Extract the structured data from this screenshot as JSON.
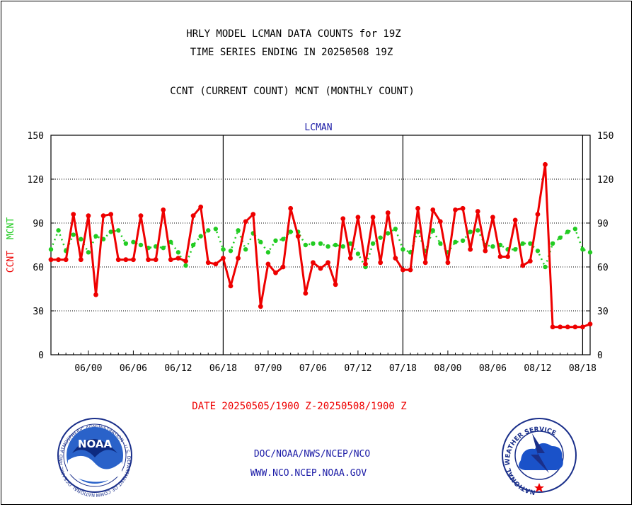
{
  "header": {
    "line1": "HRLY MODEL LCMAN DATA COUNTS for 19Z",
    "line2": "TIME SERIES ENDING IN 20250508 19Z",
    "line3": "CCNT (CURRENT COUNT) MCNT (MONTHLY COUNT)"
  },
  "chart_data": {
    "type": "line",
    "title": "LCMAN",
    "ylabel_ccnt": "CCNT",
    "ylabel_mcnt": "MCNT",
    "xlabel": "DATE 20250505/1900 Z-20250508/1900 Z",
    "ylim": [
      0,
      150
    ],
    "yticks": [
      0,
      30,
      60,
      90,
      120,
      150
    ],
    "x_start_hour": 19,
    "x_count": 73,
    "xtick_labels": [
      "06/00",
      "06/06",
      "06/12",
      "06/18",
      "07/00",
      "07/06",
      "07/12",
      "07/18",
      "08/00",
      "08/06",
      "08/12",
      "08/18"
    ],
    "xtick_index": [
      5,
      11,
      17,
      23,
      29,
      35,
      41,
      47,
      53,
      59,
      65,
      71
    ],
    "day_boundaries_index": [
      23,
      47,
      71
    ],
    "grid": true,
    "colors": {
      "ccnt": "#ee0000",
      "mcnt": "#22cc22",
      "title": "#1a1aa6",
      "footer": "#1a1aa6",
      "xlabel": "#ee0000"
    },
    "series": [
      {
        "name": "CCNT",
        "values": [
          65,
          65,
          65,
          96,
          65,
          95,
          41,
          95,
          96,
          65,
          65,
          65,
          95,
          65,
          65,
          99,
          65,
          66,
          64,
          95,
          101,
          63,
          62,
          66,
          47,
          66,
          91,
          96,
          33,
          62,
          56,
          60,
          100,
          81,
          42,
          63,
          59,
          63,
          48,
          93,
          66,
          94,
          62,
          94,
          63,
          97,
          66,
          58,
          58,
          100,
          63,
          99,
          91,
          63,
          99,
          100,
          72,
          98,
          71,
          94,
          67,
          67,
          92,
          61,
          64,
          96,
          130,
          19,
          19,
          19,
          19,
          19,
          21
        ]
      },
      {
        "name": "MCNT",
        "values": [
          72,
          85,
          71,
          82,
          79,
          70,
          81,
          79,
          84,
          85,
          76,
          77,
          75,
          73,
          74,
          73,
          77,
          70,
          61,
          75,
          81,
          85,
          86,
          72,
          71,
          85,
          72,
          83,
          77,
          70,
          78,
          79,
          84,
          84,
          75,
          76,
          76,
          74,
          75,
          74,
          76,
          69,
          60,
          76,
          80,
          83,
          86,
          72,
          70,
          84,
          71,
          85,
          76,
          70,
          77,
          78,
          84,
          85,
          75,
          74,
          75,
          72,
          72,
          76,
          76,
          71,
          60,
          76,
          80,
          84,
          86,
          72,
          70
        ]
      }
    ]
  },
  "footer": {
    "line1": "DOC/NOAA/NWS/NCEP/NCO",
    "line2": "WWW.NCO.NCEP.NOAA.GOV"
  },
  "logos": {
    "noaa_text": "NOAA",
    "noaa_ring_text": "NATIONAL OCEANIC AND ATMOSPHERIC ADMINISTRATION · U.S. DEPARTMENT OF COMMERCE ·",
    "nws_ring_text": "NATIONAL WEATHER SERVICE"
  }
}
